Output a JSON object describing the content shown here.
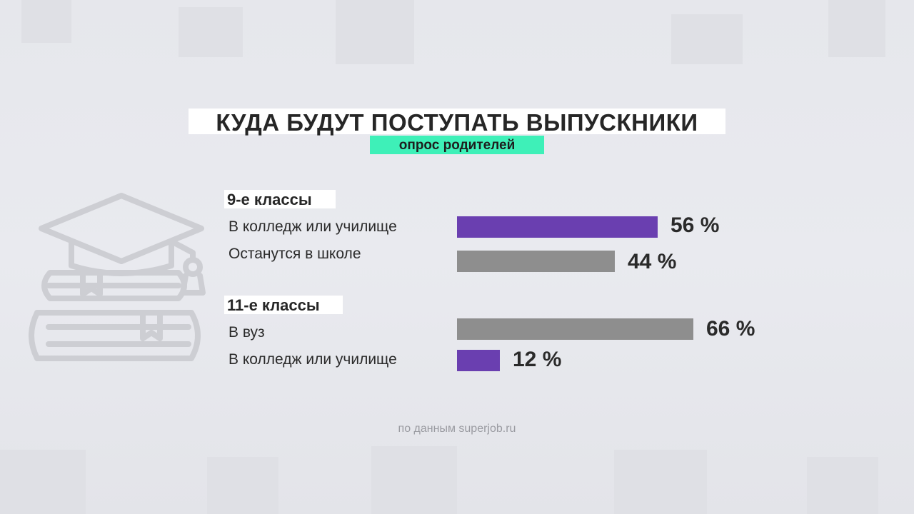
{
  "colors": {
    "accent": "#6a3fb0",
    "gray": "#8e8e8e",
    "highlight": "#3ef0b8"
  },
  "title": "КУДА БУДУТ ПОСТУПАТЬ ВЫПУСКНИКИ",
  "subtitle": "опрос родителей",
  "source": "по данным superjob.ru",
  "icon": "graduation-cap-books-icon",
  "chart_data": {
    "type": "bar",
    "orientation": "horizontal",
    "unit": "%",
    "groups": [
      {
        "label": "9-е классы",
        "bars": [
          {
            "label": "В колледж или училище",
            "value": 56,
            "value_label": "56 %",
            "color": "#6a3fb0"
          },
          {
            "label": "Останутся в школе",
            "value": 44,
            "value_label": "44 %",
            "color": "#8e8e8e"
          }
        ]
      },
      {
        "label": "11-е классы",
        "bars": [
          {
            "label": "В вуз",
            "value": 66,
            "value_label": "66 %",
            "color": "#8e8e8e"
          },
          {
            "label": "В колледж или училище",
            "value": 12,
            "value_label": "12 %",
            "color": "#6a3fb0"
          }
        ]
      }
    ]
  }
}
